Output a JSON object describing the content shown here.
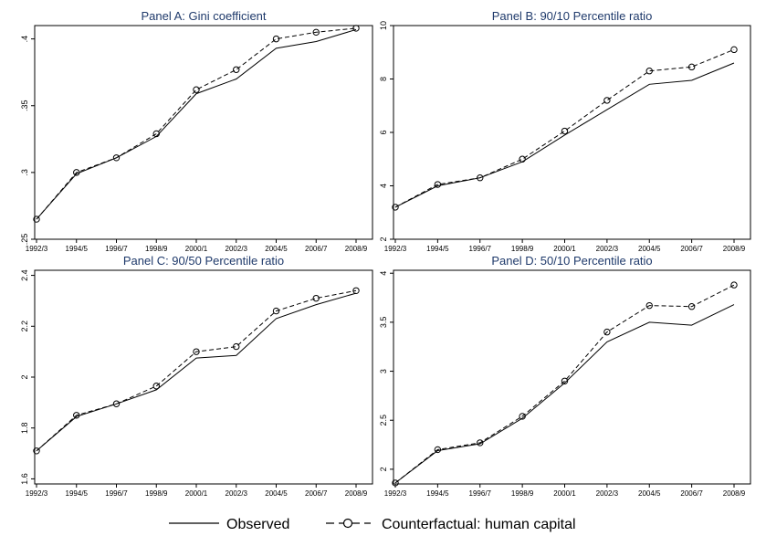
{
  "legend": {
    "observed": "Observed",
    "counterfactual": "Counterfactual: human capital"
  },
  "colors": {
    "title": "#1f3a6b",
    "axis": "#000000",
    "line": "#000000"
  },
  "chart_data": [
    {
      "type": "line",
      "title": "Panel A: Gini coefficient",
      "categories": [
        "1992/3",
        "1994/5",
        "1996/7",
        "1998/9",
        "2000/1",
        "2002/3",
        "2004/5",
        "2006/7",
        "2008/9"
      ],
      "ylim": [
        0.25,
        0.41
      ],
      "yticks": [
        0.25,
        0.3,
        0.35,
        0.4
      ],
      "ytick_labels": [
        ".25",
        ".3",
        ".35",
        ".4"
      ],
      "series": [
        {
          "name": "Observed",
          "style": "solid",
          "values": [
            0.265,
            0.299,
            0.311,
            0.327,
            0.359,
            0.37,
            0.393,
            0.398,
            0.407
          ]
        },
        {
          "name": "Counterfactual: human capital",
          "style": "dashed-circle",
          "values": [
            0.265,
            0.3,
            0.311,
            0.329,
            0.362,
            0.377,
            0.4,
            0.405,
            0.408
          ]
        }
      ]
    },
    {
      "type": "line",
      "title": "Panel B: 90/10 Percentile ratio",
      "categories": [
        "1992/3",
        "1994/5",
        "1996/7",
        "1998/9",
        "2000/1",
        "2002/3",
        "2004/5",
        "2006/7",
        "2008/9"
      ],
      "ylim": [
        2,
        10
      ],
      "yticks": [
        2,
        4,
        6,
        8,
        10
      ],
      "ytick_labels": [
        "2",
        "4",
        "6",
        "8",
        "10"
      ],
      "series": [
        {
          "name": "Observed",
          "style": "solid",
          "values": [
            3.2,
            4.0,
            4.3,
            4.9,
            5.9,
            6.85,
            7.8,
            7.95,
            8.6
          ]
        },
        {
          "name": "Counterfactual: human capital",
          "style": "dashed-circle",
          "values": [
            3.2,
            4.05,
            4.3,
            5.0,
            6.05,
            7.2,
            8.3,
            8.45,
            9.1
          ]
        }
      ]
    },
    {
      "type": "line",
      "title": "Panel C: 90/50 Percentile ratio",
      "categories": [
        "1992/3",
        "1994/5",
        "1996/7",
        "1998/9",
        "2000/1",
        "2002/3",
        "2004/5",
        "2006/7",
        "2008/9"
      ],
      "ylim": [
        1.58,
        2.42
      ],
      "yticks": [
        1.6,
        1.8,
        2.0,
        2.2,
        2.4
      ],
      "ytick_labels": [
        "1.6",
        "1.8",
        "2",
        "2.2",
        "2.4"
      ],
      "series": [
        {
          "name": "Observed",
          "style": "solid",
          "values": [
            1.71,
            1.845,
            1.895,
            1.95,
            2.075,
            2.085,
            2.23,
            2.285,
            2.33
          ]
        },
        {
          "name": "Counterfactual: human capital",
          "style": "dashed-circle",
          "values": [
            1.71,
            1.85,
            1.895,
            1.965,
            2.1,
            2.12,
            2.26,
            2.31,
            2.34
          ]
        }
      ]
    },
    {
      "type": "line",
      "title": "Panel D: 50/10 Percentile ratio",
      "categories": [
        "1992/3",
        "1994/5",
        "1996/7",
        "1998/9",
        "2000/1",
        "2002/3",
        "2004/5",
        "2006/7",
        "2008/9"
      ],
      "ylim": [
        1.85,
        4.03
      ],
      "yticks": [
        2,
        2.5,
        3,
        3.5,
        4
      ],
      "ytick_labels": [
        "2",
        "2.5",
        "3",
        "3.5",
        "4"
      ],
      "series": [
        {
          "name": "Observed",
          "style": "solid",
          "values": [
            1.86,
            2.19,
            2.26,
            2.52,
            2.88,
            3.3,
            3.5,
            3.47,
            3.68
          ]
        },
        {
          "name": "Counterfactual: human capital",
          "style": "dashed-circle",
          "values": [
            1.86,
            2.2,
            2.27,
            2.54,
            2.9,
            3.4,
            3.67,
            3.66,
            3.88
          ]
        }
      ]
    }
  ]
}
